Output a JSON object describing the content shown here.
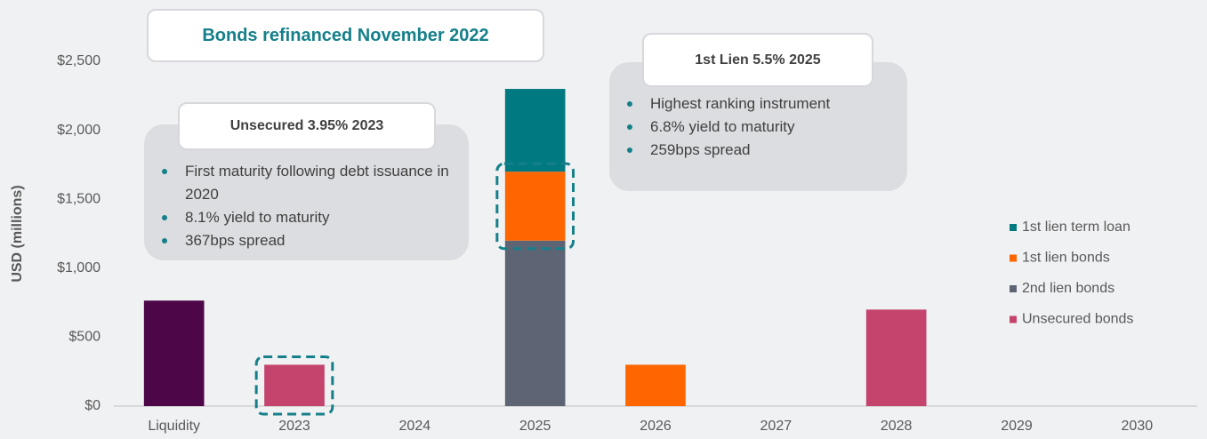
{
  "chart_data": {
    "type": "bar",
    "stacked": true,
    "title": "Bonds refinanced November 2022",
    "y_label": "USD (millions)",
    "categories": [
      "Liquidity",
      "2023",
      "2024",
      "2025",
      "2026",
      "2027",
      "2028",
      "2029",
      "2030"
    ],
    "series": [
      {
        "name": "1st lien term loan",
        "color": "#007a80",
        "values": [
          null,
          null,
          null,
          600,
          null,
          null,
          null,
          null,
          null
        ]
      },
      {
        "name": "1st lien bonds",
        "color": "#ff6600",
        "values": [
          null,
          null,
          null,
          500,
          300,
          null,
          null,
          null,
          null
        ]
      },
      {
        "name": "2nd lien bonds",
        "color": "#5d6474",
        "values": [
          null,
          null,
          null,
          1200,
          null,
          null,
          null,
          null,
          null
        ]
      },
      {
        "name": "Unsecured bonds",
        "color": "#c4446e",
        "values": [
          null,
          300,
          null,
          null,
          null,
          null,
          700,
          null,
          null
        ]
      },
      {
        "color": "#4d0648",
        "values": [
          765,
          null,
          null,
          null,
          null,
          null,
          null,
          null,
          null
        ]
      }
    ],
    "ylim": [
      0,
      2500
    ],
    "yticks": [
      {
        "value": 0,
        "label": "$0"
      },
      {
        "value": 500,
        "label": "$500"
      },
      {
        "value": 1000,
        "label": "$1,000"
      },
      {
        "value": 1500,
        "label": "$1,500"
      },
      {
        "value": 2000,
        "label": "$2,000"
      },
      {
        "value": 2500,
        "label": "$2,500"
      }
    ],
    "legend": "right",
    "annotations": [
      {
        "title": "Unsecured 3.95% 2023",
        "bullets": [
          "First maturity following debt issuance in 2020",
          "8.1% yield to maturity",
          "367bps spread"
        ]
      },
      {
        "title": "1st Lien 5.5% 2025",
        "bullets": [
          "Highest ranking instrument",
          "6.8% yield to maturity",
          "259bps spread"
        ]
      }
    ]
  }
}
